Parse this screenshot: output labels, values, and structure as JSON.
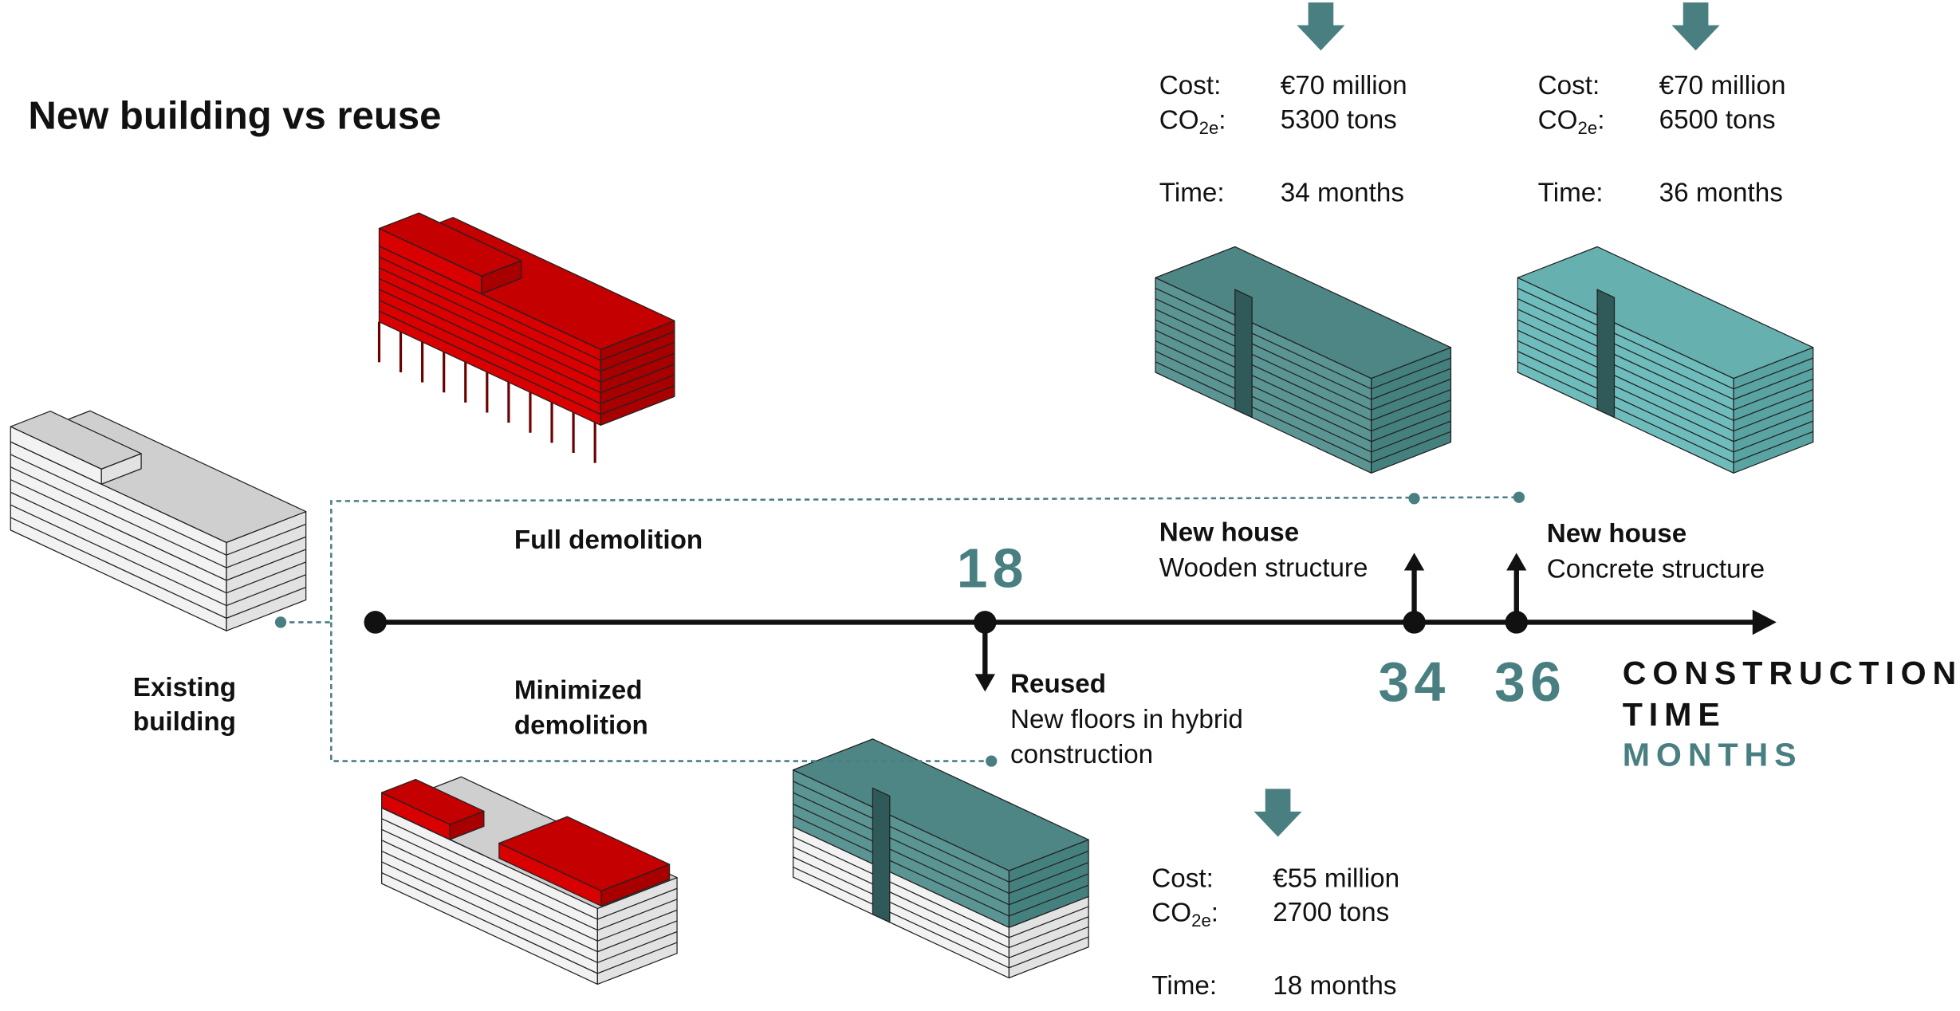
{
  "title": "New building vs reuse",
  "existing_building": [
    "Existing",
    "building"
  ],
  "paths": {
    "full": "Full demolition",
    "minimized": [
      "Minimized",
      "demolition"
    ]
  },
  "axis": {
    "label": [
      "CONSTRUCTION",
      "TIME"
    ],
    "unit": "MONTHS"
  },
  "metric_labels": {
    "cost": "Cost:",
    "co2": "CO",
    "co2_sub": "2e",
    "co2_colon": ":",
    "time": "Time:"
  },
  "outcomes": [
    {
      "month": 18,
      "title": "Reused",
      "description": [
        "New floors in hybrid",
        "construction"
      ],
      "cost": "€55 million",
      "co2": "2700 tons",
      "time": "18 months"
    },
    {
      "month": 34,
      "title": "New house",
      "description": [
        "Wooden structure"
      ],
      "cost": "€70 million",
      "co2": "5300 tons",
      "time": "34 months"
    },
    {
      "month": 36,
      "title": "New house",
      "description": [
        "Concrete structure"
      ],
      "cost": "€70 million",
      "co2": "6500 tons",
      "time": "36 months"
    }
  ]
}
